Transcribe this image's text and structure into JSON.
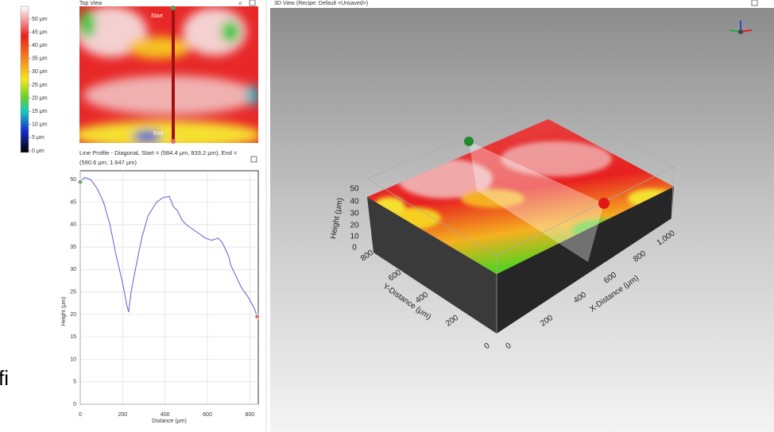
{
  "colorbar": {
    "labels": [
      "50 μm",
      "45 μm",
      "40 μm",
      "35 μm",
      "30 μm",
      "25 μm",
      "20 μm",
      "15 μm",
      "10 μm",
      "5 μm",
      "0 μm"
    ]
  },
  "side_text": "fi",
  "top_view": {
    "title": "Top View",
    "start": "Start",
    "end": "End"
  },
  "chart_data": {
    "type": "line",
    "title": "Line Profile - Diagonal, Start = (584.4 μm, 833.2 μm), End = (590.6 μm, 1.647 μm)",
    "x_label": "Distance (μm)",
    "y_label": "Height (μm)",
    "x": [
      0,
      20,
      50,
      80,
      110,
      140,
      170,
      200,
      220,
      228,
      240,
      260,
      290,
      320,
      360,
      390,
      420,
      440,
      460,
      480,
      500,
      530,
      560,
      590,
      620,
      650,
      670,
      690,
      700,
      710,
      730,
      760,
      790,
      820,
      835
    ],
    "series": [
      {
        "color": "#5a5fd6",
        "values": [
          49.5,
          50.5,
          50,
          48,
          45,
          40,
          33,
          27,
          22,
          20.5,
          25,
          30,
          37,
          42,
          45,
          46,
          46.3,
          44,
          43,
          41,
          40,
          39,
          38,
          37,
          36.5,
          37,
          36,
          34,
          33,
          31,
          29,
          26,
          24,
          21.5,
          19.5
        ]
      }
    ],
    "xlim": [
      0,
      840
    ],
    "ylim": [
      0,
      52
    ],
    "xticks": [
      0,
      200,
      400,
      600,
      800
    ],
    "yticks": [
      0,
      5,
      10,
      15,
      20,
      25,
      30,
      35,
      40,
      45,
      50
    ],
    "grid": true
  },
  "view3d": {
    "title": "3D View (Recipe: Default <Unsaved>)",
    "height_label": "Height (μm)",
    "y_label": "Y-Distance (μm)",
    "x_label": "X-Distance (μm)",
    "height_ticks": [
      50,
      40,
      30,
      20,
      10,
      0
    ],
    "y_ticks": [
      800,
      600,
      400,
      200,
      0
    ],
    "x_ticks": [
      0,
      200,
      400,
      600,
      800,
      {
        "value": 1000,
        "label": "1,000"
      }
    ]
  }
}
